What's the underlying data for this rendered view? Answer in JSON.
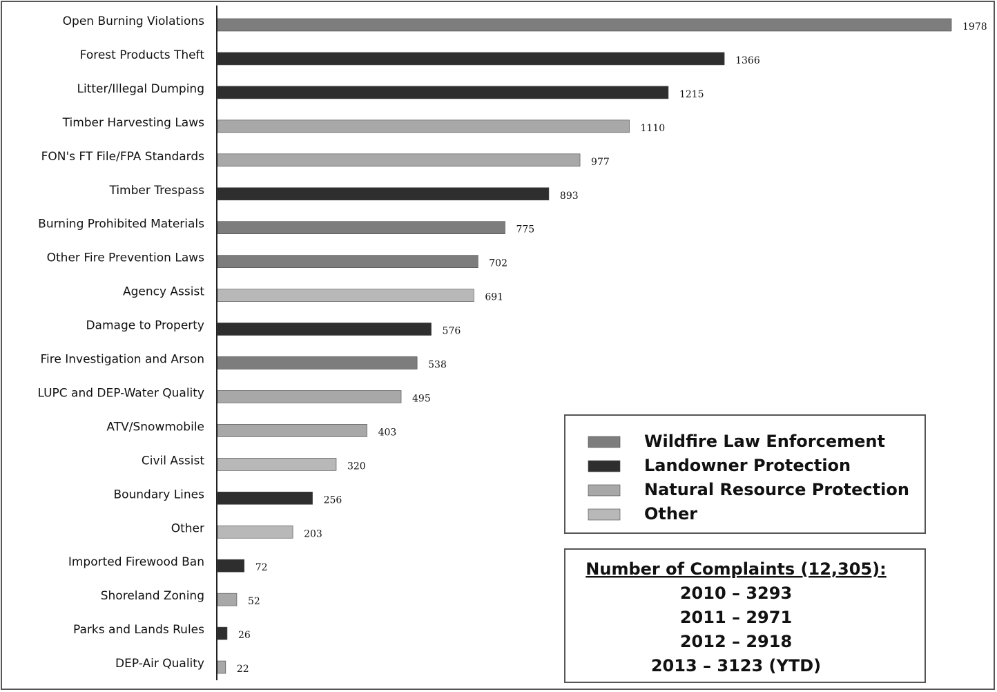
{
  "chart_data": {
    "type": "bar",
    "orientation": "horizontal",
    "categories": [
      "Open Burning Violations",
      "Forest Products Theft",
      "Litter/Illegal Dumping",
      "Timber Harvesting Laws",
      "FON's FT File/FPA Standards",
      "Timber Trespass",
      "Burning Prohibited Materials",
      "Other Fire Prevention Laws",
      "Agency Assist",
      "Damage to Property",
      "Fire Investigation and Arson",
      "LUPC and DEP-Water Quality",
      "ATV/Snowmobile",
      "Civil Assist",
      "Boundary Lines",
      "Other",
      "Imported Firewood Ban",
      "Shoreland Zoning",
      "Parks and Lands Rules",
      "DEP-Air Quality"
    ],
    "series": [
      {
        "name": "Wildfire Law Enforcement",
        "color": "#7d7d7d",
        "values": [
          1978,
          null,
          null,
          null,
          null,
          null,
          775,
          702,
          null,
          null,
          538,
          null,
          null,
          null,
          null,
          null,
          null,
          null,
          null,
          null
        ]
      },
      {
        "name": "Landowner Protection",
        "color": "#2e2e2e",
        "values": [
          null,
          1366,
          1215,
          null,
          null,
          893,
          null,
          null,
          null,
          576,
          null,
          null,
          null,
          null,
          256,
          null,
          72,
          null,
          26,
          null
        ]
      },
      {
        "name": "Natural Resource Protection",
        "color": "#a8a8a8",
        "values": [
          null,
          null,
          null,
          1110,
          977,
          null,
          null,
          null,
          null,
          null,
          null,
          495,
          403,
          null,
          null,
          null,
          null,
          52,
          null,
          22
        ]
      },
      {
        "name": "Other",
        "color": "#b8b8b8",
        "values": [
          null,
          null,
          null,
          null,
          null,
          null,
          null,
          null,
          691,
          null,
          null,
          null,
          null,
          320,
          null,
          203,
          null,
          null,
          null,
          null
        ]
      }
    ],
    "notes": {
      "heading": "Number of Complaints (12,305):",
      "lines": [
        "2010 – 3293",
        "2011 – 2971",
        "2012 – 2918",
        "2013 – 3123 (YTD)"
      ]
    }
  }
}
